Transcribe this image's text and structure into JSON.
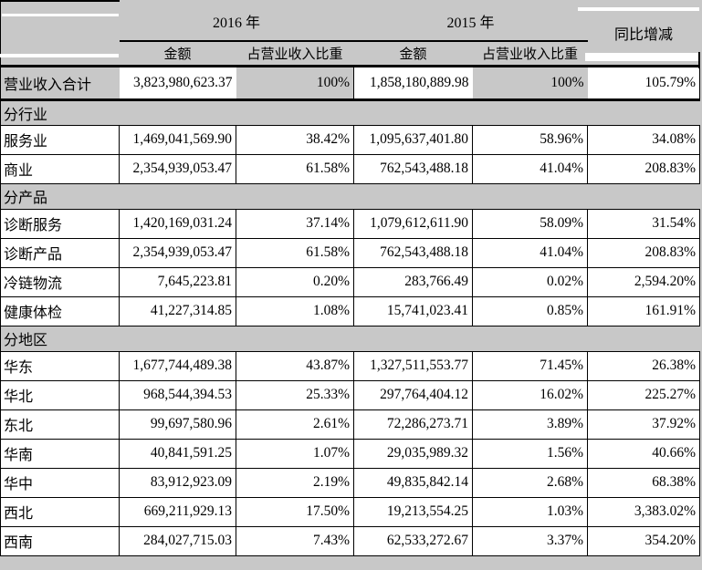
{
  "colors": {
    "shade_grey": "#c8c8c8",
    "border_black": "#000000",
    "cell_white": "#ffffff"
  },
  "table": {
    "header": {
      "year_2016": "2016 年",
      "year_2015": "2015 年",
      "amount": "金额",
      "share": "占营业收入比重",
      "yoy": "同比增减"
    },
    "rows": [
      {
        "type": "total",
        "label": "营业收入合计",
        "amount_2016": "3,823,980,623.37",
        "share_2016": "100%",
        "amount_2015": "1,858,180,889.98",
        "share_2015": "100%",
        "yoy": "105.79%"
      },
      {
        "type": "section",
        "label": "分行业"
      },
      {
        "type": "data",
        "label": "服务业",
        "amount_2016": "1,469,041,569.90",
        "share_2016": "38.42%",
        "amount_2015": "1,095,637,401.80",
        "share_2015": "58.96%",
        "yoy": "34.08%"
      },
      {
        "type": "data",
        "label": "商业",
        "amount_2016": "2,354,939,053.47",
        "share_2016": "61.58%",
        "amount_2015": "762,543,488.18",
        "share_2015": "41.04%",
        "yoy": "208.83%"
      },
      {
        "type": "section",
        "label": "分产品"
      },
      {
        "type": "data",
        "label": "诊断服务",
        "amount_2016": "1,420,169,031.24",
        "share_2016": "37.14%",
        "amount_2015": "1,079,612,611.90",
        "share_2015": "58.09%",
        "yoy": "31.54%"
      },
      {
        "type": "data",
        "label": "诊断产品",
        "amount_2016": "2,354,939,053.47",
        "share_2016": "61.58%",
        "amount_2015": "762,543,488.18",
        "share_2015": "41.04%",
        "yoy": "208.83%"
      },
      {
        "type": "data",
        "label": "冷链物流",
        "amount_2016": "7,645,223.81",
        "share_2016": "0.20%",
        "amount_2015": "283,766.49",
        "share_2015": "0.02%",
        "yoy": "2,594.20%"
      },
      {
        "type": "data",
        "label": "健康体检",
        "amount_2016": "41,227,314.85",
        "share_2016": "1.08%",
        "amount_2015": "15,741,023.41",
        "share_2015": "0.85%",
        "yoy": "161.91%"
      },
      {
        "type": "section",
        "label": "分地区"
      },
      {
        "type": "data",
        "label": "华东",
        "amount_2016": "1,677,744,489.38",
        "share_2016": "43.87%",
        "amount_2015": "1,327,511,553.77",
        "share_2015": "71.45%",
        "yoy": "26.38%"
      },
      {
        "type": "data",
        "label": "华北",
        "amount_2016": "968,544,394.53",
        "share_2016": "25.33%",
        "amount_2015": "297,764,404.12",
        "share_2015": "16.02%",
        "yoy": "225.27%"
      },
      {
        "type": "data",
        "label": "东北",
        "amount_2016": "99,697,580.96",
        "share_2016": "2.61%",
        "amount_2015": "72,286,273.71",
        "share_2015": "3.89%",
        "yoy": "37.92%"
      },
      {
        "type": "data",
        "label": "华南",
        "amount_2016": "40,841,591.25",
        "share_2016": "1.07%",
        "amount_2015": "29,035,989.32",
        "share_2015": "1.56%",
        "yoy": "40.66%"
      },
      {
        "type": "data",
        "label": "华中",
        "amount_2016": "83,912,923.09",
        "share_2016": "2.19%",
        "amount_2015": "49,835,842.14",
        "share_2015": "2.68%",
        "yoy": "68.38%"
      },
      {
        "type": "data",
        "label": "西北",
        "amount_2016": "669,211,929.13",
        "share_2016": "17.50%",
        "amount_2015": "19,213,554.25",
        "share_2015": "1.03%",
        "yoy": "3,383.02%"
      },
      {
        "type": "data",
        "label": "西南",
        "amount_2016": "284,027,715.03",
        "share_2016": "7.43%",
        "amount_2015": "62,533,272.67",
        "share_2015": "3.37%",
        "yoy": "354.20%"
      }
    ]
  }
}
